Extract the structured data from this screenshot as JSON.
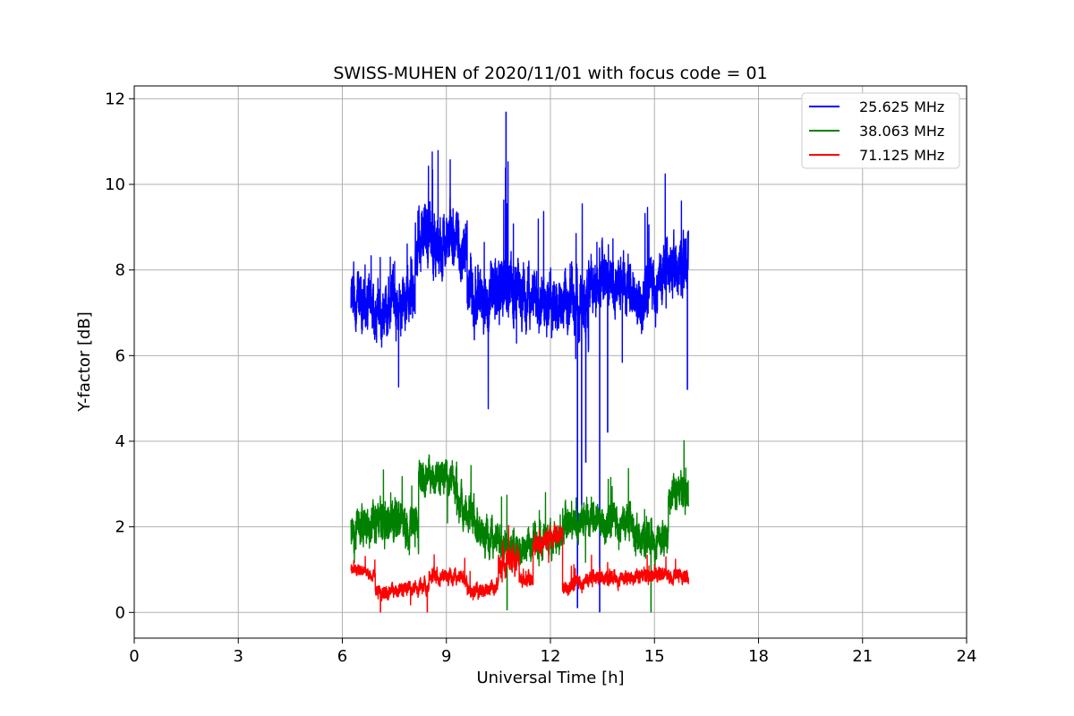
{
  "chart_data": {
    "type": "line",
    "title": "SWISS-MUHEN of 2020/11/01 with focus code = 01",
    "xlabel": "Universal Time [h]",
    "ylabel": "Y-factor [dB]",
    "xlim": [
      0,
      24
    ],
    "ylim": [
      -0.6,
      12.3
    ],
    "xticks": [
      0,
      3,
      6,
      9,
      12,
      15,
      18,
      21,
      24
    ],
    "yticks": [
      0,
      2,
      4,
      6,
      8,
      10,
      12
    ],
    "grid": true,
    "legend_position": "top-right",
    "series": [
      {
        "name": "25.625 MHz",
        "color": "#0000ff",
        "segments": [
          {
            "x": [
              6.25,
              6.7
            ],
            "y": [
              7.2,
              7.2
            ],
            "amp": 0.8,
            "pk": 1.3
          },
          {
            "x": [
              6.7,
              8.1
            ],
            "y": [
              7.0,
              7.3
            ],
            "amp": 0.75,
            "pk": 1.2
          },
          {
            "x": [
              8.1,
              8.9
            ],
            "y": [
              8.4,
              8.6
            ],
            "amp": 0.9,
            "pk": 1.8
          },
          {
            "x": [
              8.9,
              9.6
            ],
            "y": [
              8.8,
              8.4
            ],
            "amp": 0.85,
            "pk": 1.8
          },
          {
            "x": [
              9.6,
              10.4
            ],
            "y": [
              7.6,
              7.3
            ],
            "amp": 0.9,
            "pk": 1.5
          },
          {
            "x": [
              10.4,
              11.0
            ],
            "y": [
              7.6,
              7.5
            ],
            "amp": 0.9,
            "pk": 2.5
          },
          {
            "x": [
              11.0,
              12.4
            ],
            "y": [
              7.4,
              7.3
            ],
            "amp": 0.8,
            "pk": 1.6
          },
          {
            "x": [
              12.4,
              13.1
            ],
            "y": [
              7.3,
              7.1
            ],
            "amp": 0.85,
            "pk": 1.8
          },
          {
            "x": [
              13.1,
              14.4
            ],
            "y": [
              7.7,
              7.6
            ],
            "amp": 0.8,
            "pk": 1.6
          },
          {
            "x": [
              14.4,
              15.98
            ],
            "y": [
              7.3,
              8.2
            ],
            "amp": 0.8,
            "pk": 1.7
          }
        ],
        "events": [
          {
            "x": 12.78,
            "y": 0.1
          },
          {
            "x": 12.9,
            "y": 2.5
          },
          {
            "x": 13.02,
            "y": 3.5
          },
          {
            "x": 13.42,
            "y": 0.0
          },
          {
            "x": 13.65,
            "y": 4.2
          },
          {
            "x": 15.95,
            "y": 5.2
          },
          {
            "x": 10.72,
            "y": 11.7
          }
        ]
      },
      {
        "name": "38.063 MHz",
        "color": "#008000",
        "segments": [
          {
            "x": [
              6.25,
              8.2
            ],
            "y": [
              2.1,
              2.1
            ],
            "amp": 0.6,
            "pk": 1.0
          },
          {
            "x": [
              8.2,
              9.3
            ],
            "y": [
              3.3,
              3.1
            ],
            "amp": 0.5,
            "pk": 1.1
          },
          {
            "x": [
              9.3,
              9.9
            ],
            "y": [
              2.5,
              2.3
            ],
            "amp": 0.5,
            "pk": 0.9
          },
          {
            "x": [
              9.9,
              11.0
            ],
            "y": [
              1.9,
              1.5
            ],
            "amp": 0.5,
            "pk": 0.9
          },
          {
            "x": [
              11.0,
              12.3
            ],
            "y": [
              1.5,
              1.8
            ],
            "amp": 0.45,
            "pk": 0.8
          },
          {
            "x": [
              12.3,
              13.4
            ],
            "y": [
              1.9,
              2.3
            ],
            "amp": 0.5,
            "pk": 0.9
          },
          {
            "x": [
              13.4,
              14.4
            ],
            "y": [
              2.2,
              2.0
            ],
            "amp": 0.5,
            "pk": 0.9
          },
          {
            "x": [
              14.4,
              15.4
            ],
            "y": [
              1.7,
              1.8
            ],
            "amp": 0.5,
            "pk": 0.8
          },
          {
            "x": [
              15.4,
              15.98
            ],
            "y": [
              2.8,
              2.8
            ],
            "amp": 0.5,
            "pk": 1.0
          }
        ],
        "events": [
          {
            "x": 10.75,
            "y": 0.05
          },
          {
            "x": 14.9,
            "y": 0.0
          }
        ]
      },
      {
        "name": "71.125 MHz",
        "color": "#ff0000",
        "segments": [
          {
            "x": [
              6.25,
              6.95
            ],
            "y": [
              1.0,
              0.9
            ],
            "amp": 0.15,
            "pk": 0.35
          },
          {
            "x": [
              6.95,
              8.5
            ],
            "y": [
              0.5,
              0.6
            ],
            "amp": 0.2,
            "pk": 0.4
          },
          {
            "x": [
              8.5,
              9.6
            ],
            "y": [
              0.9,
              0.8
            ],
            "amp": 0.2,
            "pk": 0.4
          },
          {
            "x": [
              9.6,
              10.5
            ],
            "y": [
              0.5,
              0.6
            ],
            "amp": 0.2,
            "pk": 0.35
          },
          {
            "x": [
              10.5,
              11.1
            ],
            "y": [
              1.1,
              1.3
            ],
            "amp": 0.35,
            "pk": 0.6
          },
          {
            "x": [
              11.1,
              11.5
            ],
            "y": [
              0.8,
              0.7
            ],
            "amp": 0.2,
            "pk": 0.4
          },
          {
            "x": [
              11.5,
              12.35
            ],
            "y": [
              1.5,
              1.9
            ],
            "amp": 0.3,
            "pk": 0.5
          },
          {
            "x": [
              12.35,
              13.4
            ],
            "y": [
              0.6,
              0.8
            ],
            "amp": 0.2,
            "pk": 0.4
          },
          {
            "x": [
              13.4,
              15.98
            ],
            "y": [
              0.8,
              0.9
            ],
            "amp": 0.2,
            "pk": 0.4
          }
        ],
        "events": [
          {
            "x": 7.1,
            "y": 0.0
          },
          {
            "x": 8.45,
            "y": 0.0
          }
        ]
      }
    ]
  }
}
